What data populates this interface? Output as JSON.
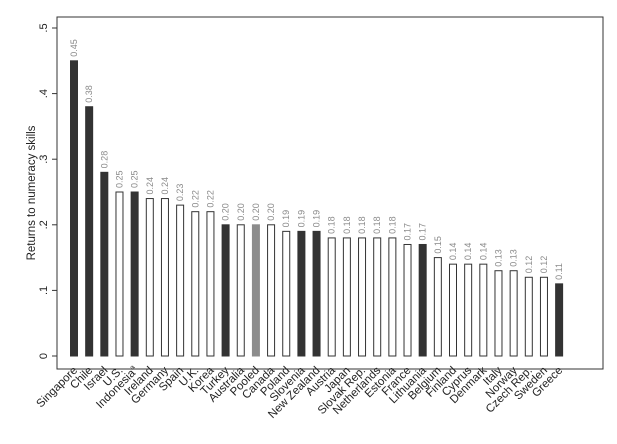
{
  "chart_data": {
    "type": "bar",
    "ylabel": "Returns to numeracy skills",
    "xlabel": "",
    "ylim": [
      0,
      0.5
    ],
    "yticks": [
      0,
      0.1,
      0.2,
      0.3,
      0.4,
      0.5
    ],
    "ytick_labels": [
      "0",
      ".1",
      ".2",
      ".3",
      ".4",
      ".5"
    ],
    "grid": false,
    "colors": {
      "dark": "#333333",
      "hollow": "#ffffff",
      "pooled": "#8c8c8c",
      "outline": "#333333"
    },
    "categories": [
      "Singapore",
      "Chile",
      "Israel",
      "U.S.",
      "Indonesia",
      "Ireland",
      "Germany",
      "Spain",
      "U.K.",
      "Korea",
      "Turkey",
      "Australia",
      "Pooled",
      "Canada",
      "Poland",
      "Slovenia",
      "New Zealand",
      "Austria",
      "Japan",
      "Slovak Rep.",
      "Netherlands",
      "Estonia",
      "France",
      "Lithuania",
      "Belgium",
      "Finland",
      "Cyprus",
      "Denmark",
      "Italy",
      "Norway",
      "Czech Rep.",
      "Sweden",
      "Greece"
    ],
    "category_superscripts": {
      "Indonesia": "a"
    },
    "values": [
      0.45,
      0.38,
      0.28,
      0.25,
      0.25,
      0.24,
      0.24,
      0.23,
      0.22,
      0.22,
      0.2,
      0.2,
      0.2,
      0.2,
      0.19,
      0.19,
      0.19,
      0.18,
      0.18,
      0.18,
      0.18,
      0.18,
      0.17,
      0.17,
      0.15,
      0.14,
      0.14,
      0.14,
      0.13,
      0.13,
      0.12,
      0.12,
      0.11
    ],
    "value_labels": [
      "0.45",
      "0.38",
      "0.28",
      "0.25",
      "0.25",
      "0.24",
      "0.24",
      "0.23",
      "0.22",
      "0.22",
      "0.20",
      "0.20",
      "0.20",
      "0.20",
      "0.19",
      "0.19",
      "0.19",
      "0.18",
      "0.18",
      "0.18",
      "0.18",
      "0.18",
      "0.17",
      "0.17",
      "0.15",
      "0.14",
      "0.14",
      "0.14",
      "0.13",
      "0.13",
      "0.12",
      "0.12",
      "0.11"
    ],
    "bar_styles": [
      "dark",
      "dark",
      "dark",
      "hollow",
      "dark",
      "hollow",
      "hollow",
      "hollow",
      "hollow",
      "hollow",
      "dark",
      "hollow",
      "pooled",
      "hollow",
      "hollow",
      "dark",
      "dark",
      "hollow",
      "hollow",
      "hollow",
      "hollow",
      "hollow",
      "hollow",
      "dark",
      "hollow",
      "hollow",
      "hollow",
      "hollow",
      "hollow",
      "hollow",
      "hollow",
      "hollow",
      "dark"
    ]
  }
}
